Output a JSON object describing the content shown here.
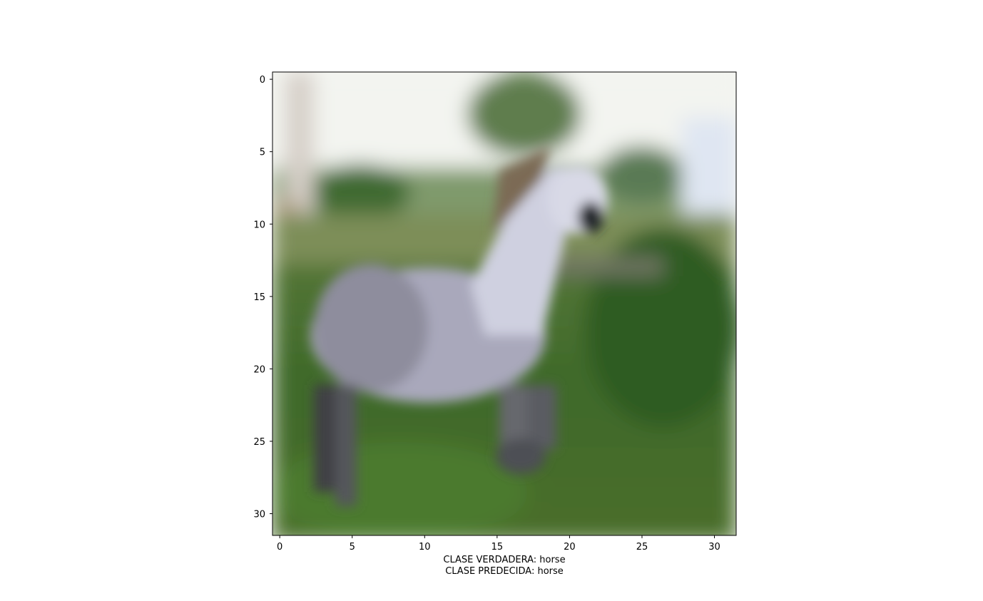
{
  "chart_data": {
    "type": "image",
    "image_subject": "horse",
    "image_size": [
      32,
      32
    ],
    "xlabel_lines": [
      "CLASE VERDADERA: horse",
      "CLASE PREDECIDA: horse"
    ],
    "x_ticks": [
      0,
      5,
      10,
      15,
      20,
      25,
      30
    ],
    "y_ticks": [
      0,
      5,
      10,
      15,
      20,
      25,
      30
    ],
    "xlim": [
      -0.5,
      31.5
    ],
    "ylim": [
      31.5,
      -0.5
    ],
    "grid": false
  }
}
